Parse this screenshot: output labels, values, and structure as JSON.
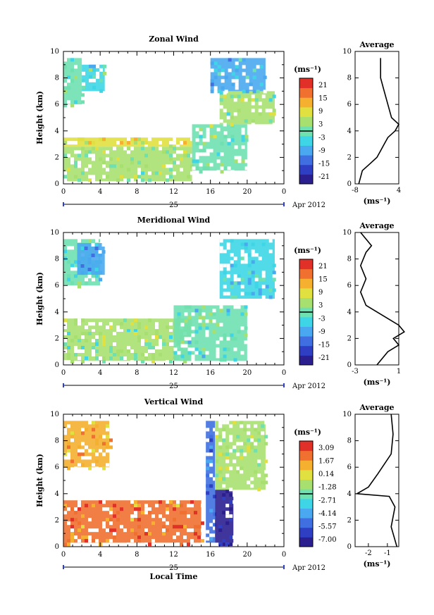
{
  "panels": [
    {
      "title": "Zonal Wind",
      "ylabel": "Height (km)",
      "y_ticks": [
        "0",
        "2",
        "4",
        "6",
        "8",
        "10"
      ],
      "x_ticks": [
        "0",
        "4",
        "8",
        "12",
        "16",
        "20",
        "0"
      ],
      "day_label": "25",
      "month_label": "Apr 2012",
      "xlabel": "",
      "colorbar_unit": "(ms⁻¹)",
      "colorbar_ticks": [
        "21",
        "15",
        "9",
        "3",
        "-3",
        "-9",
        "-15",
        "-21"
      ],
      "avg_title": "Average",
      "avg_x_ticks": [
        "-8",
        "4"
      ],
      "avg_y_ticks": [
        "0",
        "2",
        "4",
        "6",
        "8",
        "10"
      ],
      "avg_unit": "(ms⁻¹)"
    },
    {
      "title": "Meridional Wind",
      "ylabel": "Height (km)",
      "y_ticks": [
        "0",
        "2",
        "4",
        "6",
        "8",
        "10"
      ],
      "x_ticks": [
        "0",
        "4",
        "8",
        "12",
        "16",
        "20",
        "0"
      ],
      "day_label": "25",
      "month_label": "Apr 2012",
      "xlabel": "",
      "colorbar_unit": "(ms⁻¹)",
      "colorbar_ticks": [
        "21",
        "15",
        "9",
        "3",
        "-3",
        "-9",
        "-15",
        "-21"
      ],
      "avg_title": "Average",
      "avg_x_ticks": [
        "-3",
        "1"
      ],
      "avg_y_ticks": [
        "0",
        "2",
        "4",
        "6",
        "8",
        "10"
      ],
      "avg_unit": "(ms⁻¹)"
    },
    {
      "title": "Vertical Wind",
      "ylabel": "Height (km)",
      "y_ticks": [
        "0",
        "2",
        "4",
        "6",
        "8",
        "10"
      ],
      "x_ticks": [
        "0",
        "4",
        "8",
        "12",
        "16",
        "20",
        "0"
      ],
      "day_label": "25",
      "month_label": "Apr 2012",
      "xlabel": "Local Time",
      "colorbar_unit": "(ms⁻¹)",
      "colorbar_ticks": [
        "3.09",
        "1.67",
        "0.14",
        "-1.28",
        "-2.71",
        "-4.14",
        "-5.57",
        "-7.00"
      ],
      "avg_title": "Average",
      "avg_x_ticks": [
        "-2",
        "-1"
      ],
      "avg_y_ticks": [
        "0",
        "2",
        "4",
        "6",
        "8",
        "10"
      ],
      "avg_unit": "(ms⁻¹)"
    }
  ],
  "colors": {
    "colorbar": [
      "#2b1f8f",
      "#2f3fc4",
      "#3f6fe0",
      "#4aa8f0",
      "#3ed6e6",
      "#6fe0b0",
      "#a8e070",
      "#e0e040",
      "#f5b030",
      "#f07030",
      "#e03028"
    ]
  },
  "chart_data": [
    {
      "type": "heatmap",
      "title": "Zonal Wind",
      "ylabel": "Height (km)",
      "xlabel": "",
      "x_range_hours": [
        0,
        24
      ],
      "y_range_km": [
        0,
        10
      ],
      "color_range": [
        -21,
        21
      ],
      "regions": [
        {
          "x": [
            0,
            2
          ],
          "y": [
            6.0,
            9.5
          ],
          "value": 0
        },
        {
          "x": [
            2,
            4.5
          ],
          "y": [
            7.0,
            9.0
          ],
          "value": -2
        },
        {
          "x": [
            0,
            14
          ],
          "y": [
            2.8,
            3.5
          ],
          "value": 8
        },
        {
          "x": [
            0,
            14
          ],
          "y": [
            0.2,
            2.8
          ],
          "value": 3
        },
        {
          "x": [
            14,
            20
          ],
          "y": [
            1.0,
            4.5
          ],
          "value": 1
        },
        {
          "x": [
            17,
            23
          ],
          "y": [
            4.5,
            7.0
          ],
          "value": 2
        },
        {
          "x": [
            16,
            22
          ],
          "y": [
            7.0,
            9.5
          ],
          "value": -6
        }
      ],
      "average_profile": {
        "x": [
          -7,
          -6,
          -4,
          -2,
          -1,
          0,
          1,
          3,
          4,
          2,
          1,
          0,
          -1,
          -1
        ],
        "y": [
          0,
          1,
          1.5,
          2,
          2.5,
          3,
          3.5,
          4,
          4.5,
          5,
          6,
          7,
          8,
          9.5
        ],
        "xlim": [
          -8,
          4
        ]
      }
    },
    {
      "type": "heatmap",
      "title": "Meridional Wind",
      "ylabel": "Height (km)",
      "xlabel": "",
      "x_range_hours": [
        0,
        24
      ],
      "y_range_km": [
        0,
        10
      ],
      "color_range": [
        -21,
        21
      ],
      "regions": [
        {
          "x": [
            0,
            4
          ],
          "y": [
            6.0,
            9.5
          ],
          "value": -1
        },
        {
          "x": [
            1.5,
            4.5
          ],
          "y": [
            6.8,
            9.2
          ],
          "value": -8
        },
        {
          "x": [
            0,
            14
          ],
          "y": [
            2.5,
            3.5
          ],
          "value": 3
        },
        {
          "x": [
            0,
            14
          ],
          "y": [
            0.3,
            2.5
          ],
          "value": 2
        },
        {
          "x": [
            12,
            20
          ],
          "y": [
            0.3,
            4.5
          ],
          "value": -1
        },
        {
          "x": [
            17,
            23
          ],
          "y": [
            5.0,
            9.5
          ],
          "value": -4
        }
      ],
      "average_profile": {
        "x": [
          -1,
          0,
          1,
          0.5,
          1.5,
          1,
          0,
          -1,
          -2,
          -2.5,
          -2,
          -2.5,
          -2,
          -1.5,
          -2.5
        ],
        "y": [
          0,
          1,
          1.5,
          2,
          2.5,
          3,
          3.5,
          4,
          4.5,
          5.5,
          6.5,
          7.5,
          8.5,
          9,
          10
        ],
        "xlim": [
          -3,
          1
        ]
      }
    },
    {
      "type": "heatmap",
      "title": "Vertical Wind",
      "ylabel": "Height (km)",
      "xlabel": "Local Time",
      "x_range_hours": [
        0,
        24
      ],
      "y_range_km": [
        0,
        10
      ],
      "color_range": [
        -7.0,
        3.09
      ],
      "regions": [
        {
          "x": [
            0,
            5
          ],
          "y": [
            6.0,
            9.5
          ],
          "value": 0.8
        },
        {
          "x": [
            0,
            15
          ],
          "y": [
            0.3,
            3.5
          ],
          "value": 1.5
        },
        {
          "x": [
            15.5,
            16.5
          ],
          "y": [
            0.3,
            9.5
          ],
          "value": -4.5
        },
        {
          "x": [
            16.5,
            18.5
          ],
          "y": [
            0.3,
            4.3
          ],
          "value": -6.5
        },
        {
          "x": [
            16.5,
            22
          ],
          "y": [
            4.3,
            9.5
          ],
          "value": -1.0
        }
      ],
      "average_profile": {
        "x": [
          -0.5,
          -0.8,
          -0.6,
          -0.9,
          -2.6,
          -2.0,
          -1.5,
          -0.8,
          -0.7,
          -0.8
        ],
        "y": [
          0,
          1.5,
          3,
          3.8,
          4,
          4.5,
          5.5,
          7,
          8.5,
          10
        ],
        "xlim": [
          -2.7,
          -0.4
        ]
      }
    }
  ]
}
